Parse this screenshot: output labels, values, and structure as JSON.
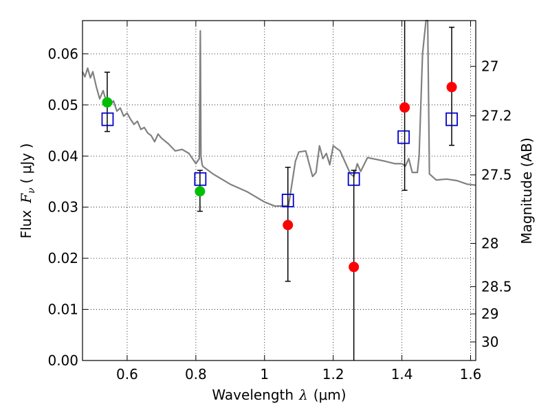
{
  "chart_data": {
    "type": "scatter",
    "xlabel_prefix": "Wavelength",
    "xlabel_symbol": "λ",
    "xlabel_unit": "(μm)",
    "ylabel_prefix": "Flux",
    "ylabel_symbol": "F",
    "ylabel_subscript": "ν",
    "ylabel_unit": "( μJy )",
    "ylabel_right": "Magnitude (AB)",
    "xlim": [
      0.47,
      1.615
    ],
    "ylim": [
      0.0,
      0.0665
    ],
    "x_ticks": [
      0.6,
      0.8,
      1.0,
      1.2,
      1.4,
      1.6
    ],
    "x_tick_labels": [
      "0.6",
      "0.8",
      "1",
      "1.2",
      "1.4",
      "1.6"
    ],
    "y_ticks": [
      0.0,
      0.01,
      0.02,
      0.03,
      0.04,
      0.05,
      0.06
    ],
    "y_tick_labels": [
      "0.00",
      "0.01",
      "0.02",
      "0.03",
      "0.04",
      "0.05",
      "0.06"
    ],
    "mag_ticks": [
      27,
      27.2,
      27.5,
      28,
      28.5,
      29,
      30
    ],
    "mag_tick_labels": [
      "27",
      "27.2",
      "27.5",
      "28",
      "28.5",
      "29",
      "30"
    ],
    "grid": true,
    "colors": {
      "model": "#808080",
      "green": "#00bf00",
      "red": "#ff0000",
      "box": "#0000cc",
      "errorbar": "#000000"
    },
    "series": [
      {
        "name": "model spectrum",
        "kind": "line",
        "x": [
          0.47,
          0.477,
          0.485,
          0.493,
          0.5,
          0.51,
          0.52,
          0.53,
          0.54,
          0.55,
          0.56,
          0.57,
          0.58,
          0.59,
          0.6,
          0.61,
          0.62,
          0.63,
          0.64,
          0.65,
          0.66,
          0.67,
          0.68,
          0.69,
          0.7,
          0.72,
          0.74,
          0.76,
          0.78,
          0.8,
          0.81,
          0.813,
          0.815,
          0.818,
          0.82,
          0.85,
          0.9,
          0.95,
          1.0,
          1.03,
          1.07,
          1.09,
          1.1,
          1.12,
          1.14,
          1.15,
          1.16,
          1.17,
          1.18,
          1.19,
          1.2,
          1.21,
          1.22,
          1.25,
          1.26,
          1.27,
          1.28,
          1.3,
          1.35,
          1.38,
          1.4,
          1.41,
          1.42,
          1.43,
          1.44,
          1.445,
          1.45,
          1.46,
          1.47,
          1.475,
          1.48,
          1.5,
          1.53,
          1.56,
          1.59,
          1.615
        ],
        "y": [
          0.0565,
          0.0555,
          0.0572,
          0.0553,
          0.0565,
          0.0536,
          0.0512,
          0.0528,
          0.0505,
          0.0498,
          0.0508,
          0.0488,
          0.0494,
          0.0478,
          0.0484,
          0.0472,
          0.0462,
          0.0468,
          0.0452,
          0.0456,
          0.0445,
          0.044,
          0.0428,
          0.0443,
          0.0435,
          0.0424,
          0.041,
          0.0413,
          0.0405,
          0.0385,
          0.0395,
          0.0645,
          0.04,
          0.0385,
          0.038,
          0.0365,
          0.0345,
          0.033,
          0.031,
          0.0302,
          0.0303,
          0.039,
          0.0408,
          0.041,
          0.036,
          0.0368,
          0.042,
          0.0395,
          0.0405,
          0.0383,
          0.042,
          0.0415,
          0.041,
          0.0365,
          0.036,
          0.0385,
          0.037,
          0.0397,
          0.039,
          0.0385,
          0.0385,
          0.038,
          0.0395,
          0.0368,
          0.0368,
          0.0368,
          0.04,
          0.06,
          0.0665,
          0.0665,
          0.0365,
          0.0353,
          0.0355,
          0.0352,
          0.0345,
          0.0343
        ]
      },
      {
        "name": "green measurements",
        "kind": "points",
        "x": [
          0.542,
          0.812
        ],
        "y": [
          0.0505,
          0.0331
        ]
      },
      {
        "name": "red measurements",
        "kind": "points",
        "x": [
          1.068,
          1.26,
          1.408,
          1.545
        ],
        "y": [
          0.0265,
          0.0183,
          0.0495,
          0.0535
        ]
      },
      {
        "name": "model photometry",
        "kind": "boxes",
        "x": [
          0.543,
          0.813,
          1.068,
          1.26,
          1.405,
          1.545
        ],
        "y": [
          0.0472,
          0.0355,
          0.0313,
          0.0355,
          0.0437,
          0.0472
        ]
      },
      {
        "name": "error bars",
        "kind": "errorbars",
        "x": [
          0.542,
          0.812,
          1.068,
          1.26,
          1.408,
          1.545
        ],
        "ymin": [
          0.0448,
          0.0292,
          0.0155,
          0.0,
          0.0333,
          0.0421
        ],
        "ymax": [
          0.0564,
          0.0372,
          0.0378,
          0.0372,
          0.0665,
          0.0652
        ]
      }
    ]
  }
}
